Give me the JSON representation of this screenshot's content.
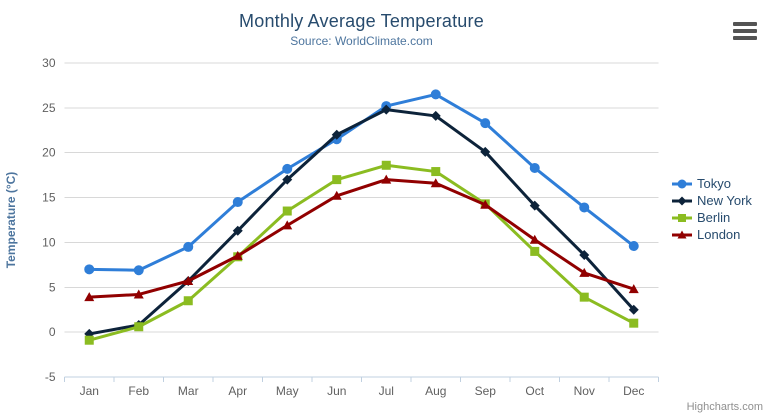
{
  "header": {
    "title": "Monthly Average Temperature",
    "subtitle": "Source: WorldClimate.com"
  },
  "export_menu": {
    "icon": "hamburger-icon"
  },
  "chart_data": {
    "type": "line",
    "title": "Monthly Average Temperature",
    "subtitle": "Source: WorldClimate.com",
    "categories": [
      "Jan",
      "Feb",
      "Mar",
      "Apr",
      "May",
      "Jun",
      "Jul",
      "Aug",
      "Sep",
      "Oct",
      "Nov",
      "Dec"
    ],
    "xlabel": "",
    "ylabel": "Temperature (°C)",
    "ylim": [
      -5,
      30
    ],
    "ytick_interval": 5,
    "grid": true,
    "legend_position": "right",
    "series": [
      {
        "name": "Tokyo",
        "color": "#2f7ed8",
        "marker": "circle",
        "values": [
          7.0,
          6.9,
          9.5,
          14.5,
          18.2,
          21.5,
          25.2,
          26.5,
          23.3,
          18.3,
          13.9,
          9.6
        ]
      },
      {
        "name": "New York",
        "color": "#0d233a",
        "marker": "diamond",
        "values": [
          -0.2,
          0.8,
          5.7,
          11.3,
          17.0,
          22.0,
          24.8,
          24.1,
          20.1,
          14.1,
          8.6,
          2.5
        ]
      },
      {
        "name": "Berlin",
        "color": "#8bbc21",
        "marker": "square",
        "values": [
          -0.9,
          0.6,
          3.5,
          8.4,
          13.5,
          17.0,
          18.6,
          17.9,
          14.3,
          9.0,
          3.9,
          1.0
        ]
      },
      {
        "name": "London",
        "color": "#910000",
        "marker": "triangle",
        "values": [
          3.9,
          4.2,
          5.7,
          8.5,
          11.9,
          15.2,
          17.0,
          16.6,
          14.2,
          10.3,
          6.6,
          4.8
        ]
      }
    ],
    "styles": {
      "grid_color": "#d8d8d8",
      "axis_line_color": "#c0d0e0",
      "axis_label_color": "#606060",
      "axis_title_color": "#4d759e",
      "title_color": "#274b6d",
      "subtitle_color": "#4d759e",
      "legend_text_color": "#274b6d"
    }
  },
  "credits": {
    "label": "Highcharts.com"
  }
}
